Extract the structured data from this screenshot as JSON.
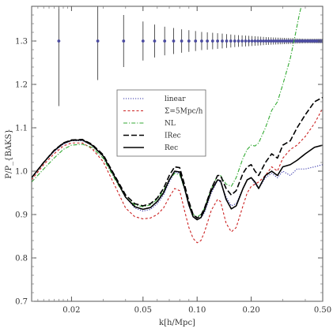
{
  "chart_data": {
    "type": "line",
    "xlabel": "k[h/Mpc]",
    "ylabel": "P/P_{BAKS}",
    "xscale": "log",
    "xlim": [
      0.012,
      0.5
    ],
    "ylim": [
      0.7,
      1.38
    ],
    "x_ticks": [
      {
        "value": 0.02,
        "label": "0.02"
      },
      {
        "value": 0.05,
        "label": "0.05"
      },
      {
        "value": 0.1,
        "label": "0.10"
      },
      {
        "value": 0.2,
        "label": "0.20"
      },
      {
        "value": 0.5,
        "label": "0.50"
      }
    ],
    "y_ticks": [
      {
        "value": 0.7,
        "label": "0.7"
      },
      {
        "value": 0.8,
        "label": "0.8"
      },
      {
        "value": 0.9,
        "label": "0.9"
      },
      {
        "value": 1.0,
        "label": "1.0"
      },
      {
        "value": 1.1,
        "label": "1.1"
      },
      {
        "value": 1.2,
        "label": "1.2"
      },
      {
        "value": 1.3,
        "label": "1.3"
      }
    ],
    "legend_position": "center-left",
    "series": [
      {
        "name": "linear",
        "color": "#3333aa",
        "style": "dotted",
        "points": [
          [
            0.012,
            0.985
          ],
          [
            0.014,
            1.02
          ],
          [
            0.016,
            1.045
          ],
          [
            0.018,
            1.062
          ],
          [
            0.02,
            1.07
          ],
          [
            0.023,
            1.07
          ],
          [
            0.026,
            1.06
          ],
          [
            0.03,
            1.035
          ],
          [
            0.035,
            0.985
          ],
          [
            0.04,
            0.94
          ],
          [
            0.045,
            0.915
          ],
          [
            0.05,
            0.908
          ],
          [
            0.055,
            0.912
          ],
          [
            0.06,
            0.925
          ],
          [
            0.065,
            0.945
          ],
          [
            0.07,
            0.975
          ],
          [
            0.075,
            0.998
          ],
          [
            0.08,
            0.995
          ],
          [
            0.085,
            0.96
          ],
          [
            0.09,
            0.92
          ],
          [
            0.095,
            0.895
          ],
          [
            0.1,
            0.888
          ],
          [
            0.105,
            0.892
          ],
          [
            0.11,
            0.905
          ],
          [
            0.12,
            0.95
          ],
          [
            0.13,
            0.978
          ],
          [
            0.135,
            0.975
          ],
          [
            0.145,
            0.94
          ],
          [
            0.155,
            0.92
          ],
          [
            0.165,
            0.925
          ],
          [
            0.18,
            0.96
          ],
          [
            0.19,
            0.98
          ],
          [
            0.2,
            0.985
          ],
          [
            0.21,
            0.97
          ],
          [
            0.22,
            0.96
          ],
          [
            0.24,
            0.985
          ],
          [
            0.26,
            0.995
          ],
          [
            0.28,
            0.985
          ],
          [
            0.3,
            1.0
          ],
          [
            0.33,
            0.99
          ],
          [
            0.36,
            1.005
          ],
          [
            0.4,
            1.005
          ],
          [
            0.45,
            1.01
          ],
          [
            0.5,
            1.015
          ]
        ]
      },
      {
        "name": "Σ=5Mpc/h",
        "color": "#cc2222",
        "style": "dashed",
        "points": [
          [
            0.012,
            0.98
          ],
          [
            0.014,
            1.015
          ],
          [
            0.016,
            1.04
          ],
          [
            0.018,
            1.058
          ],
          [
            0.02,
            1.065
          ],
          [
            0.023,
            1.065
          ],
          [
            0.026,
            1.052
          ],
          [
            0.03,
            1.022
          ],
          [
            0.035,
            0.965
          ],
          [
            0.04,
            0.915
          ],
          [
            0.045,
            0.895
          ],
          [
            0.05,
            0.89
          ],
          [
            0.055,
            0.892
          ],
          [
            0.06,
            0.9
          ],
          [
            0.065,
            0.915
          ],
          [
            0.07,
            0.94
          ],
          [
            0.075,
            0.96
          ],
          [
            0.08,
            0.955
          ],
          [
            0.085,
            0.91
          ],
          [
            0.09,
            0.87
          ],
          [
            0.095,
            0.845
          ],
          [
            0.1,
            0.835
          ],
          [
            0.105,
            0.84
          ],
          [
            0.11,
            0.86
          ],
          [
            0.12,
            0.91
          ],
          [
            0.13,
            0.935
          ],
          [
            0.135,
            0.93
          ],
          [
            0.145,
            0.88
          ],
          [
            0.155,
            0.86
          ],
          [
            0.165,
            0.87
          ],
          [
            0.18,
            0.92
          ],
          [
            0.19,
            0.95
          ],
          [
            0.2,
            0.965
          ],
          [
            0.21,
            0.97
          ],
          [
            0.22,
            0.975
          ],
          [
            0.24,
            0.99
          ],
          [
            0.26,
            1.01
          ],
          [
            0.28,
            1.0
          ],
          [
            0.3,
            1.03
          ],
          [
            0.33,
            1.05
          ],
          [
            0.36,
            1.06
          ],
          [
            0.4,
            1.08
          ],
          [
            0.45,
            1.11
          ],
          [
            0.5,
            1.145
          ]
        ]
      },
      {
        "name": "NL",
        "color": "#33aa33",
        "style": "dashdot",
        "points": [
          [
            0.012,
            0.975
          ],
          [
            0.014,
            1.005
          ],
          [
            0.016,
            1.03
          ],
          [
            0.018,
            1.05
          ],
          [
            0.02,
            1.06
          ],
          [
            0.023,
            1.062
          ],
          [
            0.026,
            1.055
          ],
          [
            0.03,
            1.03
          ],
          [
            0.035,
            0.98
          ],
          [
            0.04,
            0.94
          ],
          [
            0.045,
            0.922
          ],
          [
            0.05,
            0.918
          ],
          [
            0.055,
            0.922
          ],
          [
            0.06,
            0.935
          ],
          [
            0.065,
            0.955
          ],
          [
            0.07,
            0.98
          ],
          [
            0.075,
            0.995
          ],
          [
            0.08,
            0.992
          ],
          [
            0.085,
            0.96
          ],
          [
            0.09,
            0.925
          ],
          [
            0.095,
            0.9
          ],
          [
            0.1,
            0.895
          ],
          [
            0.105,
            0.9
          ],
          [
            0.11,
            0.915
          ],
          [
            0.12,
            0.96
          ],
          [
            0.13,
            0.99
          ],
          [
            0.135,
            0.99
          ],
          [
            0.145,
            0.97
          ],
          [
            0.155,
            0.965
          ],
          [
            0.165,
            0.985
          ],
          [
            0.18,
            1.03
          ],
          [
            0.19,
            1.05
          ],
          [
            0.2,
            1.06
          ],
          [
            0.21,
            1.058
          ],
          [
            0.22,
            1.065
          ],
          [
            0.24,
            1.1
          ],
          [
            0.26,
            1.14
          ],
          [
            0.28,
            1.16
          ],
          [
            0.3,
            1.2
          ],
          [
            0.33,
            1.26
          ],
          [
            0.35,
            1.31
          ],
          [
            0.37,
            1.36
          ],
          [
            0.39,
            1.4
          ]
        ]
      },
      {
        "name": "IRec",
        "color": "#000000",
        "style": "dashed-long",
        "points": [
          [
            0.012,
            0.985
          ],
          [
            0.014,
            1.02
          ],
          [
            0.016,
            1.048
          ],
          [
            0.018,
            1.065
          ],
          [
            0.02,
            1.072
          ],
          [
            0.023,
            1.073
          ],
          [
            0.026,
            1.062
          ],
          [
            0.03,
            1.038
          ],
          [
            0.035,
            0.988
          ],
          [
            0.04,
            0.945
          ],
          [
            0.045,
            0.925
          ],
          [
            0.05,
            0.92
          ],
          [
            0.055,
            0.925
          ],
          [
            0.06,
            0.938
          ],
          [
            0.065,
            0.96
          ],
          [
            0.07,
            0.99
          ],
          [
            0.075,
            1.01
          ],
          [
            0.08,
            1.008
          ],
          [
            0.085,
            0.97
          ],
          [
            0.09,
            0.93
          ],
          [
            0.095,
            0.9
          ],
          [
            0.1,
            0.892
          ],
          [
            0.105,
            0.898
          ],
          [
            0.11,
            0.915
          ],
          [
            0.12,
            0.96
          ],
          [
            0.13,
            0.99
          ],
          [
            0.135,
            0.99
          ],
          [
            0.145,
            0.96
          ],
          [
            0.155,
            0.945
          ],
          [
            0.165,
            0.955
          ],
          [
            0.18,
            0.995
          ],
          [
            0.19,
            1.01
          ],
          [
            0.2,
            1.015
          ],
          [
            0.21,
            1.0
          ],
          [
            0.22,
            0.99
          ],
          [
            0.24,
            1.02
          ],
          [
            0.26,
            1.04
          ],
          [
            0.28,
            1.03
          ],
          [
            0.3,
            1.06
          ],
          [
            0.33,
            1.07
          ],
          [
            0.36,
            1.1
          ],
          [
            0.4,
            1.13
          ],
          [
            0.45,
            1.16
          ],
          [
            0.5,
            1.17
          ]
        ]
      },
      {
        "name": "Rec",
        "color": "#000000",
        "style": "solid",
        "points": [
          [
            0.012,
            0.985
          ],
          [
            0.014,
            1.02
          ],
          [
            0.016,
            1.047
          ],
          [
            0.018,
            1.064
          ],
          [
            0.02,
            1.071
          ],
          [
            0.023,
            1.072
          ],
          [
            0.026,
            1.06
          ],
          [
            0.03,
            1.035
          ],
          [
            0.035,
            0.985
          ],
          [
            0.04,
            0.94
          ],
          [
            0.045,
            0.918
          ],
          [
            0.05,
            0.912
          ],
          [
            0.055,
            0.916
          ],
          [
            0.06,
            0.93
          ],
          [
            0.065,
            0.95
          ],
          [
            0.07,
            0.98
          ],
          [
            0.075,
            1.0
          ],
          [
            0.08,
            0.998
          ],
          [
            0.085,
            0.962
          ],
          [
            0.09,
            0.922
          ],
          [
            0.095,
            0.895
          ],
          [
            0.1,
            0.888
          ],
          [
            0.105,
            0.893
          ],
          [
            0.11,
            0.91
          ],
          [
            0.12,
            0.955
          ],
          [
            0.13,
            0.98
          ],
          [
            0.135,
            0.978
          ],
          [
            0.145,
            0.935
          ],
          [
            0.155,
            0.913
          ],
          [
            0.165,
            0.92
          ],
          [
            0.18,
            0.96
          ],
          [
            0.19,
            0.98
          ],
          [
            0.2,
            0.985
          ],
          [
            0.21,
            0.975
          ],
          [
            0.22,
            0.96
          ],
          [
            0.24,
            0.99
          ],
          [
            0.26,
            1.0
          ],
          [
            0.28,
            0.99
          ],
          [
            0.3,
            1.01
          ],
          [
            0.33,
            1.015
          ],
          [
            0.36,
            1.025
          ],
          [
            0.4,
            1.04
          ],
          [
            0.45,
            1.055
          ],
          [
            0.5,
            1.06
          ]
        ]
      }
    ],
    "error_bars": {
      "color": "#4a4aa0",
      "y_center": 1.3,
      "points": [
        [
          0.017,
          0.15
        ],
        [
          0.028,
          0.09
        ],
        [
          0.039,
          0.06
        ],
        [
          0.05,
          0.045
        ],
        [
          0.058,
          0.038
        ],
        [
          0.066,
          0.033
        ],
        [
          0.074,
          0.03
        ],
        [
          0.082,
          0.027
        ],
        [
          0.09,
          0.025
        ],
        [
          0.098,
          0.023
        ],
        [
          0.106,
          0.021
        ],
        [
          0.114,
          0.02
        ],
        [
          0.122,
          0.019
        ],
        [
          0.13,
          0.018
        ],
        [
          0.138,
          0.017
        ],
        [
          0.146,
          0.016
        ],
        [
          0.154,
          0.015
        ],
        [
          0.162,
          0.014
        ],
        [
          0.17,
          0.0135
        ],
        [
          0.178,
          0.013
        ],
        [
          0.186,
          0.0125
        ],
        [
          0.194,
          0.012
        ],
        [
          0.202,
          0.0115
        ],
        [
          0.21,
          0.011
        ],
        [
          0.218,
          0.0105
        ],
        [
          0.226,
          0.01
        ],
        [
          0.234,
          0.0095
        ],
        [
          0.242,
          0.009
        ],
        [
          0.25,
          0.0088
        ],
        [
          0.258,
          0.0085
        ],
        [
          0.266,
          0.0082
        ],
        [
          0.274,
          0.008
        ],
        [
          0.282,
          0.0078
        ],
        [
          0.29,
          0.0076
        ],
        [
          0.298,
          0.0074
        ],
        [
          0.306,
          0.0072
        ],
        [
          0.314,
          0.007
        ],
        [
          0.322,
          0.0068
        ],
        [
          0.33,
          0.0066
        ],
        [
          0.338,
          0.0064
        ],
        [
          0.346,
          0.0062
        ],
        [
          0.354,
          0.006
        ],
        [
          0.362,
          0.0058
        ],
        [
          0.37,
          0.0056
        ],
        [
          0.378,
          0.0054
        ],
        [
          0.386,
          0.0052
        ],
        [
          0.394,
          0.005
        ],
        [
          0.402,
          0.005
        ],
        [
          0.41,
          0.005
        ],
        [
          0.418,
          0.005
        ],
        [
          0.426,
          0.005
        ],
        [
          0.434,
          0.005
        ],
        [
          0.442,
          0.005
        ],
        [
          0.45,
          0.005
        ],
        [
          0.458,
          0.005
        ],
        [
          0.466,
          0.005
        ],
        [
          0.474,
          0.005
        ],
        [
          0.482,
          0.005
        ],
        [
          0.49,
          0.005
        ],
        [
          0.498,
          0.005
        ]
      ]
    }
  }
}
